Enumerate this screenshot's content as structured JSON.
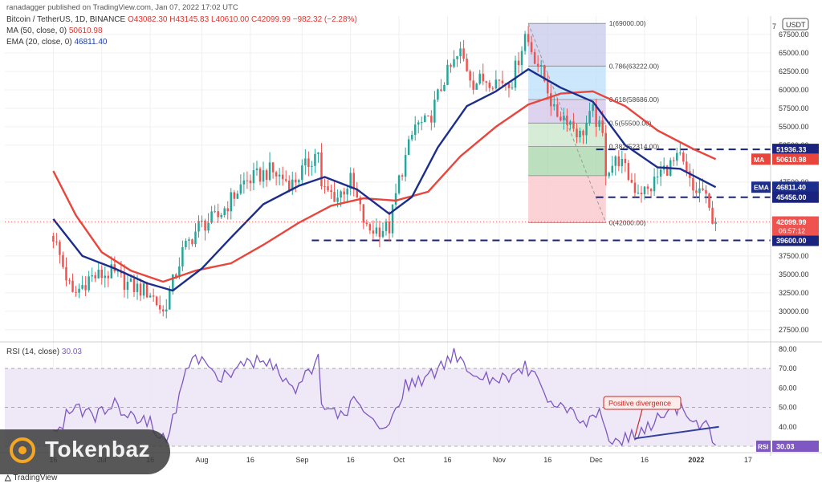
{
  "publisher_line": "ranadagger published on TradingView.com, Jan 07, 2022 17:02 UTC",
  "header": {
    "symbol_line": "Bitcoin / TetherUS, 1D, BINANCE",
    "ohlc": "O43082.30 H43145.83 L40610.00 C42099.99 −982.32 (−2.28%)",
    "ma_label": "MA (50, close, 0)",
    "ma_value": "50610.98",
    "ema_label": "EMA (20, close, 0)",
    "ema_value": "46811.40",
    "rsi_label": "RSI (14, close)",
    "rsi_value": "30.03",
    "currency_badge": "USDT"
  },
  "branding": {
    "watermark": "Tokenbaz",
    "footer": "TradingView"
  },
  "colors": {
    "up": "#26a69a",
    "down": "#ef5350",
    "ma": "#e8453c",
    "ema": "#1c2e8c",
    "rsi": "#7e57c2",
    "fib_dash": "#1a237e",
    "divergence": "#2f3f9e"
  },
  "chart_data": [
    {
      "type": "candlestick",
      "title": "Bitcoin / TetherUS, 1D, BINANCE",
      "y_axis_ticks": [
        "67500.00",
        "65000.00",
        "62500.00",
        "60000.00",
        "57500.00",
        "55000.00",
        "52500.00",
        "47500.00",
        "42500.00",
        "37500.00",
        "35000.00",
        "32500.00",
        "30000.00",
        "27500.00"
      ],
      "y_axis_top_label": "7",
      "ylim": [
        26500,
        70000
      ],
      "x_axis_ticks": [
        {
          "label": "16",
          "date": "2021-06-16"
        },
        {
          "label": "Jul",
          "date": "2021-07-01"
        },
        {
          "label": "16",
          "date": "2021-07-16"
        },
        {
          "label": "Aug",
          "date": "2021-08-01"
        },
        {
          "label": "16",
          "date": "2021-08-16"
        },
        {
          "label": "Sep",
          "date": "2021-09-01"
        },
        {
          "label": "16",
          "date": "2021-09-16"
        },
        {
          "label": "Oct",
          "date": "2021-10-01"
        },
        {
          "label": "16",
          "date": "2021-10-16"
        },
        {
          "label": "Nov",
          "date": "2021-11-01"
        },
        {
          "label": "16",
          "date": "2021-11-16"
        },
        {
          "label": "Dec",
          "date": "2021-12-01"
        },
        {
          "label": "16",
          "date": "2021-12-16"
        },
        {
          "label": "2022",
          "date": "2022-01-01"
        },
        {
          "label": "17",
          "date": "2022-01-17"
        }
      ],
      "price_path": [
        [
          "2021-06-16",
          40200
        ],
        [
          "2021-06-22",
          32000
        ],
        [
          "2021-06-27",
          34500
        ],
        [
          "2021-07-04",
          35200
        ],
        [
          "2021-07-10",
          33400
        ],
        [
          "2021-07-16",
          32500
        ],
        [
          "2021-07-20",
          29800
        ],
        [
          "2021-07-26",
          38000
        ],
        [
          "2021-07-31",
          41500
        ],
        [
          "2021-08-06",
          42800
        ],
        [
          "2021-08-14",
          47500
        ],
        [
          "2021-08-22",
          49000
        ],
        [
          "2021-08-29",
          47300
        ],
        [
          "2021-09-06",
          51800
        ],
        [
          "2021-09-07",
          46500
        ],
        [
          "2021-09-12",
          45500
        ],
        [
          "2021-09-16",
          47700
        ],
        [
          "2021-09-21",
          41000
        ],
        [
          "2021-09-28",
          41300
        ],
        [
          "2021-10-01",
          47800
        ],
        [
          "2021-10-06",
          55200
        ],
        [
          "2021-10-10",
          55500
        ],
        [
          "2021-10-15",
          61500
        ],
        [
          "2021-10-20",
          65000
        ],
        [
          "2021-10-24",
          61000
        ],
        [
          "2021-10-28",
          61500
        ],
        [
          "2021-11-01",
          61200
        ],
        [
          "2021-11-05",
          61300
        ],
        [
          "2021-11-09",
          67500
        ],
        [
          "2021-11-12",
          64500
        ],
        [
          "2021-11-16",
          60200
        ],
        [
          "2021-11-18",
          56900
        ],
        [
          "2021-11-22",
          56300
        ],
        [
          "2021-11-26",
          53800
        ],
        [
          "2021-11-30",
          57000
        ],
        [
          "2021-12-03",
          53600
        ],
        [
          "2021-12-04",
          49200
        ],
        [
          "2021-12-08",
          50600
        ],
        [
          "2021-12-13",
          46700
        ],
        [
          "2021-12-17",
          46200
        ],
        [
          "2021-12-21",
          48900
        ],
        [
          "2021-12-27",
          50700
        ],
        [
          "2021-12-31",
          46200
        ],
        [
          "2022-01-03",
          46400
        ],
        [
          "2022-01-05",
          43500
        ],
        [
          "2022-01-07",
          42100
        ]
      ],
      "close": {
        "value": 42099.99,
        "label": "42099.99",
        "countdown": "06:57:12"
      },
      "ma50": {
        "name": "MA (50, close, 0)",
        "last": 50610.98,
        "path": [
          [
            "2021-06-16",
            49000
          ],
          [
            "2021-06-23",
            43000
          ],
          [
            "2021-07-01",
            38000
          ],
          [
            "2021-07-10",
            35500
          ],
          [
            "2021-07-20",
            34000
          ],
          [
            "2021-07-30",
            35500
          ],
          [
            "2021-08-10",
            36500
          ],
          [
            "2021-08-20",
            39000
          ],
          [
            "2021-08-31",
            42000
          ],
          [
            "2021-09-10",
            44300
          ],
          [
            "2021-09-20",
            45300
          ],
          [
            "2021-09-30",
            45000
          ],
          [
            "2021-10-10",
            46200
          ],
          [
            "2021-10-20",
            51000
          ],
          [
            "2021-10-31",
            55000
          ],
          [
            "2021-11-10",
            58000
          ],
          [
            "2021-11-20",
            59500
          ],
          [
            "2021-11-30",
            59800
          ],
          [
            "2021-12-10",
            57800
          ],
          [
            "2021-12-20",
            54500
          ],
          [
            "2021-12-31",
            52000
          ],
          [
            "2022-01-07",
            50611
          ]
        ]
      },
      "ema20": {
        "name": "EMA (20, close, 0)",
        "last": 46811.4,
        "path": [
          [
            "2021-06-16",
            42500
          ],
          [
            "2021-06-25",
            37500
          ],
          [
            "2021-07-05",
            35800
          ],
          [
            "2021-07-15",
            33800
          ],
          [
            "2021-07-23",
            32800
          ],
          [
            "2021-08-01",
            35800
          ],
          [
            "2021-08-10",
            40000
          ],
          [
            "2021-08-20",
            44500
          ],
          [
            "2021-08-31",
            47000
          ],
          [
            "2021-09-08",
            48200
          ],
          [
            "2021-09-18",
            46500
          ],
          [
            "2021-09-28",
            43200
          ],
          [
            "2021-10-05",
            45500
          ],
          [
            "2021-10-13",
            52200
          ],
          [
            "2021-10-22",
            57800
          ],
          [
            "2021-10-31",
            59800
          ],
          [
            "2021-11-10",
            62800
          ],
          [
            "2021-11-20",
            60300
          ],
          [
            "2021-11-30",
            58400
          ],
          [
            "2021-12-10",
            52500
          ],
          [
            "2021-12-20",
            49500
          ],
          [
            "2021-12-27",
            49300
          ],
          [
            "2022-01-07",
            46811
          ]
        ]
      },
      "fibonacci": {
        "start": "2021-11-10",
        "end": "2021-12-04",
        "levels": [
          {
            "label": "1(69000.00)",
            "ratio": 1,
            "price": 69000,
            "fill": "#c5cae9"
          },
          {
            "label": "0.786(63222.00)",
            "ratio": 0.786,
            "price": 63222,
            "fill": "#bbdefb"
          },
          {
            "label": "0.618(58686.00)",
            "ratio": 0.618,
            "price": 58686,
            "fill": "#d1c4e9"
          },
          {
            "label": "0.5(55500.00)",
            "ratio": 0.5,
            "price": 55500,
            "fill": "#c8e6c9"
          },
          {
            "label": "0.382(52314.00)",
            "ratio": 0.382,
            "price": 52314,
            "fill": "#a5d6a7"
          },
          {
            "label": "",
            "ratio": 0.236,
            "price": 48372,
            "fill": "#e0e0e0"
          },
          {
            "label": "0(42000.00)",
            "ratio": 0,
            "price": 42000,
            "fill": "#ffcdd2"
          }
        ]
      },
      "horizontal_lines": [
        {
          "price": 51936.33,
          "label": "51936.33",
          "start": "2021-12-01"
        },
        {
          "price": 45456.0,
          "label": "45456.00",
          "start": "2021-12-01"
        },
        {
          "price": 39600.0,
          "label": "39600.00",
          "start": "2021-09-04"
        }
      ],
      "tags": [
        {
          "text": "MA",
          "value": "50610.98"
        },
        {
          "text": "EMA",
          "value": "46811.40"
        }
      ]
    },
    {
      "type": "line",
      "title": "RSI (14, close)",
      "ylim": [
        30,
        82
      ],
      "y_axis_ticks": [
        "80.00",
        "70.00",
        "60.00",
        "50.00",
        "40.00"
      ],
      "bands": {
        "upper": 70,
        "lower": 30
      },
      "last": 30.03,
      "series": [
        {
          "name": "RSI (14, close)",
          "values_path": [
            [
              "2021-06-16",
              35
            ],
            [
              "2021-06-22",
              50
            ],
            [
              "2021-06-28",
              45
            ],
            [
              "2021-07-04",
              52
            ],
            [
              "2021-07-10",
              47
            ],
            [
              "2021-07-16",
              42
            ],
            [
              "2021-07-21",
              34
            ],
            [
              "2021-07-28",
              72
            ],
            [
              "2021-08-01",
              76
            ],
            [
              "2021-08-07",
              65
            ],
            [
              "2021-08-14",
              74
            ],
            [
              "2021-08-22",
              72
            ],
            [
              "2021-08-30",
              60
            ],
            [
              "2021-09-06",
              74
            ],
            [
              "2021-09-07",
              50
            ],
            [
              "2021-09-14",
              45
            ],
            [
              "2021-09-18",
              55
            ],
            [
              "2021-09-24",
              40
            ],
            [
              "2021-09-28",
              41
            ],
            [
              "2021-10-03",
              62
            ],
            [
              "2021-10-10",
              66
            ],
            [
              "2021-10-16",
              75
            ],
            [
              "2021-10-20",
              78
            ],
            [
              "2021-10-24",
              66
            ],
            [
              "2021-10-28",
              65
            ],
            [
              "2021-11-01",
              63
            ],
            [
              "2021-11-09",
              71
            ],
            [
              "2021-11-14",
              62
            ],
            [
              "2021-11-18",
              50
            ],
            [
              "2021-11-23",
              47
            ],
            [
              "2021-11-28",
              44
            ],
            [
              "2021-12-02",
              47
            ],
            [
              "2021-12-04",
              35
            ],
            [
              "2021-12-10",
              33
            ],
            [
              "2021-12-14",
              36
            ],
            [
              "2021-12-18",
              42
            ],
            [
              "2021-12-22",
              47
            ],
            [
              "2021-12-27",
              51
            ],
            [
              "2021-12-31",
              41
            ],
            [
              "2022-01-04",
              43
            ],
            [
              "2022-01-07",
              30
            ]
          ]
        }
      ],
      "annotation": {
        "text": "Positive divergence",
        "line_start": [
          "2021-12-13",
          34
        ],
        "line_end": [
          "2022-01-08",
          40
        ],
        "arrow_to": [
          "2021-12-13",
          34
        ]
      }
    }
  ]
}
